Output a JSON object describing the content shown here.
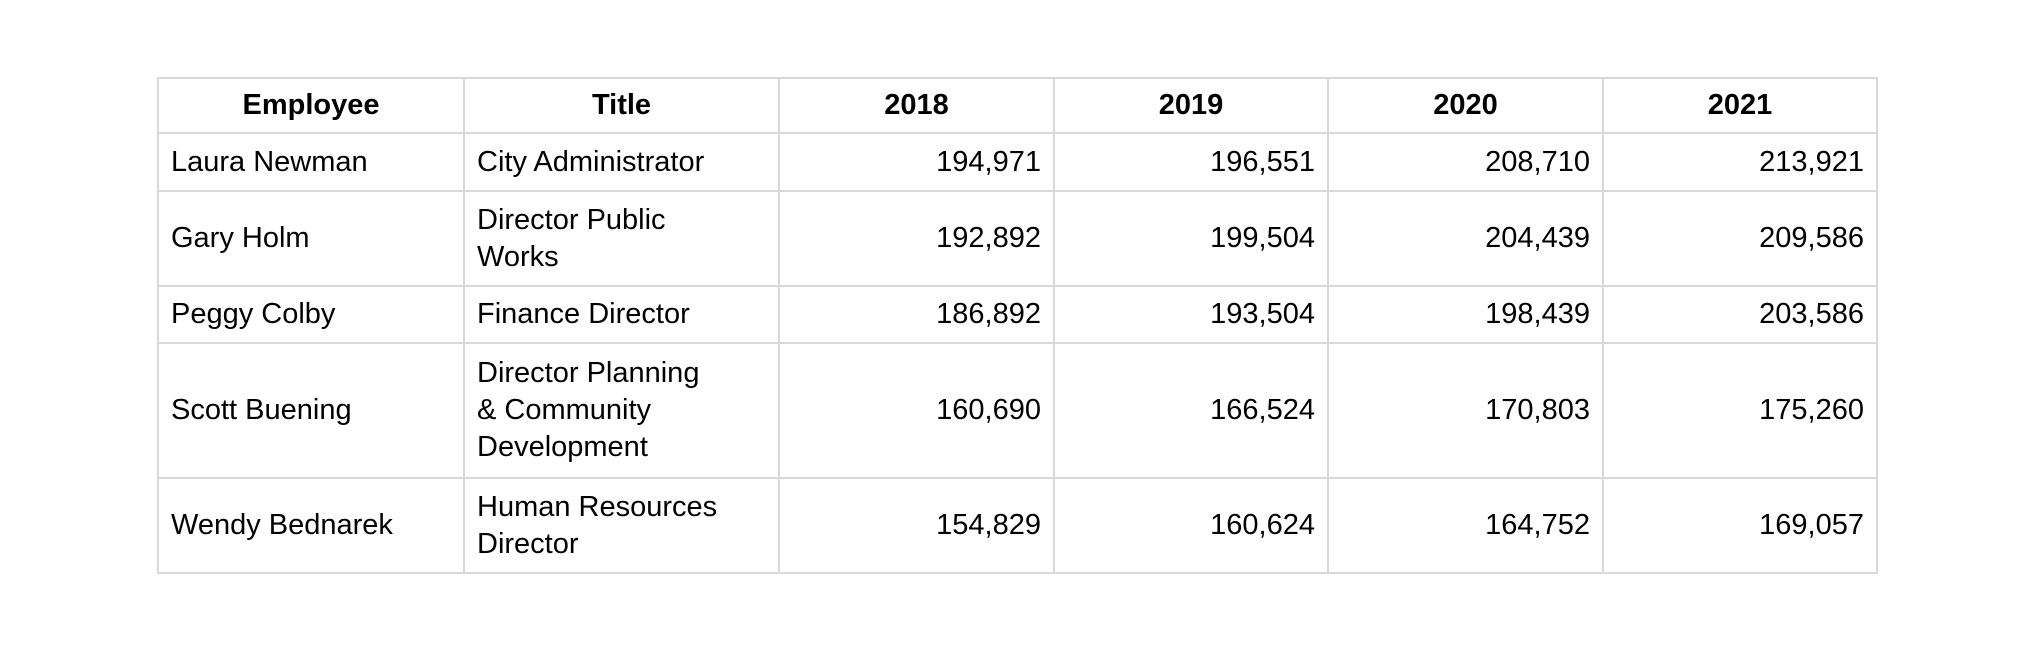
{
  "table": {
    "headers": [
      "Employee",
      "Title",
      "2018",
      "2019",
      "2020",
      "2021"
    ],
    "rows": [
      [
        "Laura Newman",
        "City Administrator",
        "194,971",
        "196,551",
        "208,710",
        "213,921"
      ],
      [
        "Gary Holm",
        "Director Public\nWorks",
        "192,892",
        "199,504",
        "204,439",
        "209,586"
      ],
      [
        "Peggy Colby",
        "Finance Director",
        "186,892",
        "193,504",
        "198,439",
        "203,586"
      ],
      [
        "Scott Buening",
        "Director Planning\n& Community\nDevelopment",
        "160,690",
        "166,524",
        "170,803",
        "175,260"
      ],
      [
        "Wendy Bednarek",
        "Human Resources\nDirector",
        "154,829",
        "160,624",
        "164,752",
        "169,057"
      ]
    ]
  },
  "colors": {
    "grid_border": "#d9d9d9",
    "text": "#000000",
    "background": "#ffffff"
  }
}
